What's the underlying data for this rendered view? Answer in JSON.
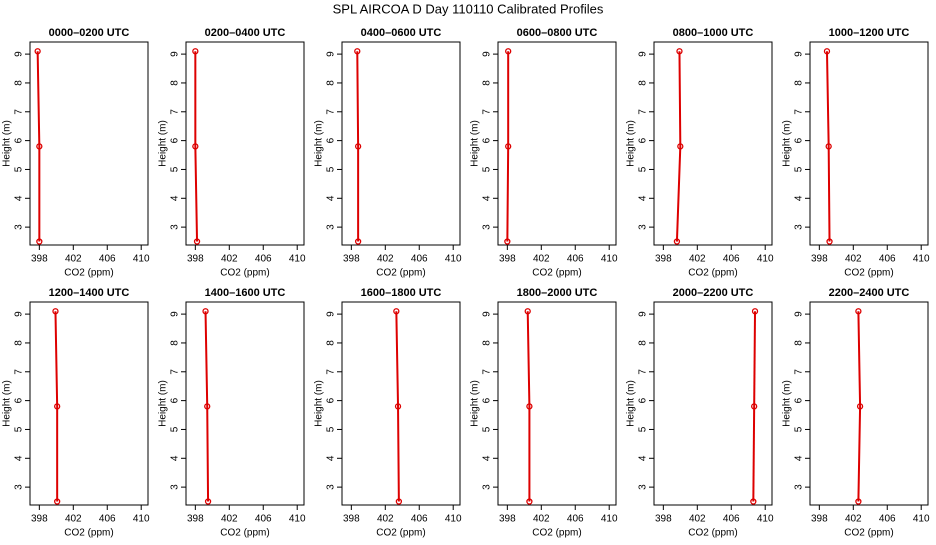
{
  "title": "SPL AIRCOA D  Day 110110  Calibrated Profiles",
  "chart_data": [
    {
      "type": "line",
      "title": "0000–0200 UTC",
      "x_label": "CO2 (ppm)",
      "y_label": "Height (m)",
      "color": "#dd0000",
      "x": [
        397.8,
        398.0,
        398.0
      ],
      "y": [
        9.1,
        5.8,
        2.5
      ],
      "xlim": [
        396.9,
        410.8
      ],
      "ylim": [
        2.38,
        9.42
      ],
      "xticks": [
        398,
        402,
        406,
        410
      ],
      "yticks": [
        3,
        4,
        5,
        6,
        7,
        8,
        9
      ]
    },
    {
      "type": "line",
      "title": "0200–0400 UTC",
      "x_label": "CO2 (ppm)",
      "y_label": "Height (m)",
      "color": "#dd0000",
      "x": [
        398.0,
        398.0,
        398.2
      ],
      "y": [
        9.1,
        5.8,
        2.5
      ],
      "xlim": [
        396.9,
        410.8
      ],
      "ylim": [
        2.38,
        9.42
      ],
      "xticks": [
        398,
        402,
        406,
        410
      ],
      "yticks": [
        3,
        4,
        5,
        6,
        7,
        8,
        9
      ]
    },
    {
      "type": "line",
      "title": "0400–0600 UTC",
      "x_label": "CO2 (ppm)",
      "y_label": "Height (m)",
      "color": "#dd0000",
      "x": [
        398.7,
        398.8,
        398.8
      ],
      "y": [
        9.1,
        5.8,
        2.5
      ],
      "xlim": [
        396.9,
        410.8
      ],
      "ylim": [
        2.38,
        9.42
      ],
      "xticks": [
        398,
        402,
        406,
        410
      ],
      "yticks": [
        3,
        4,
        5,
        6,
        7,
        8,
        9
      ]
    },
    {
      "type": "line",
      "title": "0600–0800 UTC",
      "x_label": "CO2 (ppm)",
      "y_label": "Height (m)",
      "color": "#dd0000",
      "x": [
        398.1,
        398.1,
        398.0
      ],
      "y": [
        9.1,
        5.8,
        2.5
      ],
      "xlim": [
        396.9,
        410.8
      ],
      "ylim": [
        2.38,
        9.42
      ],
      "xticks": [
        398,
        402,
        406,
        410
      ],
      "yticks": [
        3,
        4,
        5,
        6,
        7,
        8,
        9
      ]
    },
    {
      "type": "line",
      "title": "0800–1000 UTC",
      "x_label": "CO2 (ppm)",
      "y_label": "Height (m)",
      "color": "#dd0000",
      "x": [
        399.9,
        400.0,
        399.6
      ],
      "y": [
        9.1,
        5.8,
        2.5
      ],
      "xlim": [
        396.9,
        410.8
      ],
      "ylim": [
        2.38,
        9.42
      ],
      "xticks": [
        398,
        402,
        406,
        410
      ],
      "yticks": [
        3,
        4,
        5,
        6,
        7,
        8,
        9
      ]
    },
    {
      "type": "line",
      "title": "1000–1200 UTC",
      "x_label": "CO2 (ppm)",
      "y_label": "Height (m)",
      "color": "#dd0000",
      "x": [
        398.9,
        399.1,
        399.2
      ],
      "y": [
        9.1,
        5.8,
        2.5
      ],
      "xlim": [
        396.9,
        410.8
      ],
      "ylim": [
        2.38,
        9.42
      ],
      "xticks": [
        398,
        402,
        406,
        410
      ],
      "yticks": [
        3,
        4,
        5,
        6,
        7,
        8,
        9
      ]
    },
    {
      "type": "line",
      "title": "1200–1400 UTC",
      "x_label": "CO2 (ppm)",
      "y_label": "Height (m)",
      "color": "#dd0000",
      "x": [
        399.9,
        400.1,
        400.1
      ],
      "y": [
        9.1,
        5.8,
        2.5
      ],
      "xlim": [
        396.9,
        410.8
      ],
      "ylim": [
        2.38,
        9.42
      ],
      "xticks": [
        398,
        402,
        406,
        410
      ],
      "yticks": [
        3,
        4,
        5,
        6,
        7,
        8,
        9
      ]
    },
    {
      "type": "line",
      "title": "1400–1600 UTC",
      "x_label": "CO2 (ppm)",
      "y_label": "Height (m)",
      "color": "#dd0000",
      "x": [
        399.2,
        399.4,
        399.5
      ],
      "y": [
        9.1,
        5.8,
        2.5
      ],
      "xlim": [
        396.9,
        410.8
      ],
      "ylim": [
        2.38,
        9.42
      ],
      "xticks": [
        398,
        402,
        406,
        410
      ],
      "yticks": [
        3,
        4,
        5,
        6,
        7,
        8,
        9
      ]
    },
    {
      "type": "line",
      "title": "1600–1800 UTC",
      "x_label": "CO2 (ppm)",
      "y_label": "Height (m)",
      "color": "#dd0000",
      "x": [
        403.3,
        403.5,
        403.6
      ],
      "y": [
        9.1,
        5.8,
        2.5
      ],
      "xlim": [
        396.9,
        410.8
      ],
      "ylim": [
        2.38,
        9.42
      ],
      "xticks": [
        398,
        402,
        406,
        410
      ],
      "yticks": [
        3,
        4,
        5,
        6,
        7,
        8,
        9
      ]
    },
    {
      "type": "line",
      "title": "1800–2000 UTC",
      "x_label": "CO2 (ppm)",
      "y_label": "Height (m)",
      "color": "#dd0000",
      "x": [
        400.4,
        400.6,
        400.6
      ],
      "y": [
        9.1,
        5.8,
        2.5
      ],
      "xlim": [
        396.9,
        410.8
      ],
      "ylim": [
        2.38,
        9.42
      ],
      "xticks": [
        398,
        402,
        406,
        410
      ],
      "yticks": [
        3,
        4,
        5,
        6,
        7,
        8,
        9
      ]
    },
    {
      "type": "line",
      "title": "2000–2200 UTC",
      "x_label": "CO2 (ppm)",
      "y_label": "Height (m)",
      "color": "#dd0000",
      "x": [
        408.8,
        408.7,
        408.6
      ],
      "y": [
        9.1,
        5.8,
        2.5
      ],
      "xlim": [
        396.9,
        410.8
      ],
      "ylim": [
        2.38,
        9.42
      ],
      "xticks": [
        398,
        402,
        406,
        410
      ],
      "yticks": [
        3,
        4,
        5,
        6,
        7,
        8,
        9
      ]
    },
    {
      "type": "line",
      "title": "2200–2400 UTC",
      "x_label": "CO2 (ppm)",
      "y_label": "Height (m)",
      "color": "#dd0000",
      "x": [
        402.6,
        402.8,
        402.6
      ],
      "y": [
        9.1,
        5.8,
        2.5
      ],
      "xlim": [
        396.9,
        410.8
      ],
      "ylim": [
        2.38,
        9.42
      ],
      "xticks": [
        398,
        402,
        406,
        410
      ],
      "yticks": [
        3,
        4,
        5,
        6,
        7,
        8,
        9
      ]
    }
  ]
}
